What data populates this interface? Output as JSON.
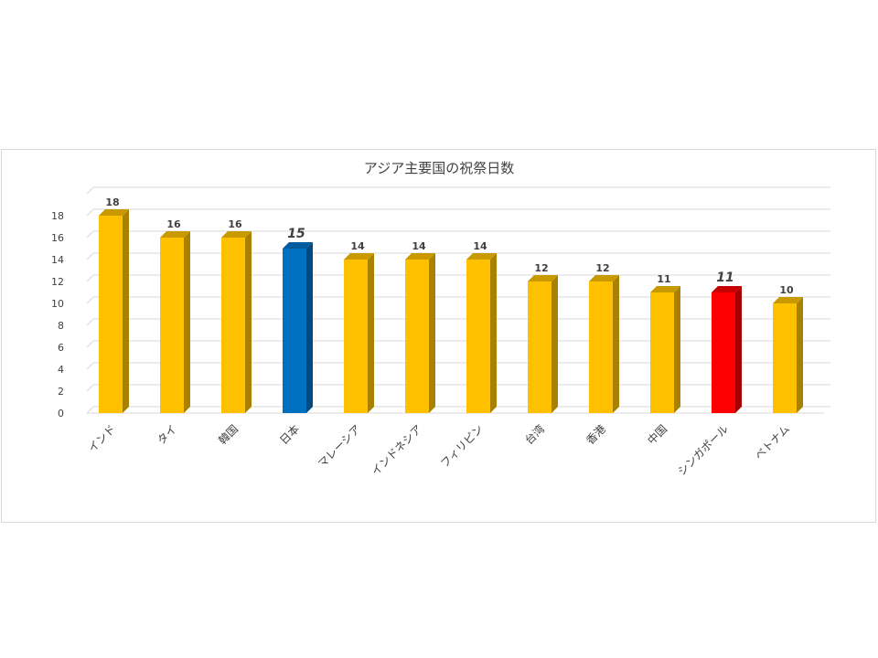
{
  "chart_data": {
    "type": "bar",
    "title": "アジア主要国の祝祭日数",
    "categories": [
      "インド",
      "タイ",
      "韓国",
      "日本",
      "マレーシア",
      "インドネシア",
      "フィリピン",
      "台湾",
      "香港",
      "中国",
      "シンガポール",
      "ベトナム"
    ],
    "values": [
      18,
      16,
      16,
      15,
      14,
      14,
      14,
      12,
      12,
      11,
      11,
      10
    ],
    "ylim": [
      0,
      18
    ],
    "yticks": [
      0,
      2,
      4,
      6,
      8,
      10,
      12,
      14,
      16,
      18
    ],
    "grid": true,
    "legend": "none",
    "bar_3d": true,
    "colors": {
      "default": "#FFC000",
      "default_side": "#A88100",
      "default_top": "#C99A00",
      "highlight_japan": "#0070C0",
      "highlight_japan_side": "#004A80",
      "highlight_japan_top": "#005A9E",
      "highlight_singapore": "#FF0000",
      "highlight_singapore_side": "#A80000",
      "highlight_singapore_top": "#C80000"
    },
    "highlights": {
      "日本": "japan",
      "シンガポール": "singapore"
    }
  }
}
